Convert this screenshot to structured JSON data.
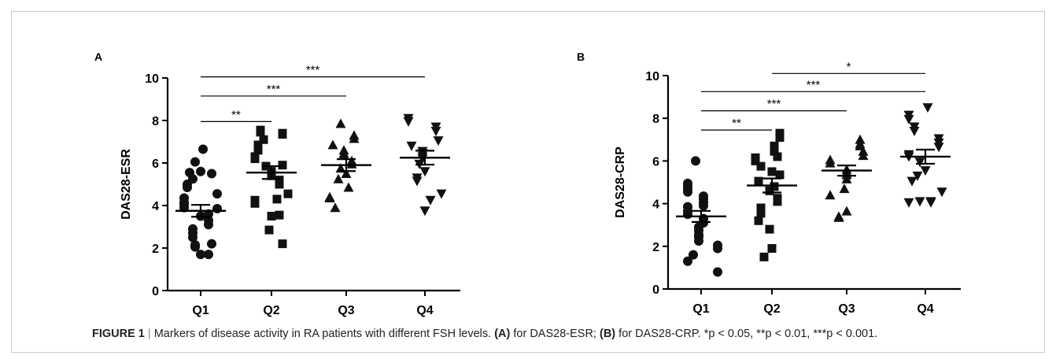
{
  "chart_data": [
    {
      "type": "scatter",
      "panel_label": "A",
      "ylabel": "DAS28-ESR",
      "categories": [
        "Q1",
        "Q2",
        "Q3",
        "Q4"
      ],
      "ylim": [
        0,
        10
      ],
      "yticks": [
        "0",
        "2",
        "4",
        "6",
        "8",
        "10"
      ],
      "grid": false,
      "series": [
        {
          "category": "Q1",
          "marker": "circle",
          "mean": 3.75,
          "sem": 0.28,
          "values": [
            6.65,
            6.05,
            5.55,
            5.5,
            5.6,
            5.25,
            5.0,
            4.85,
            4.55,
            4.35,
            4.15,
            4.05,
            3.9,
            3.85,
            3.6,
            3.5,
            3.3,
            3.1,
            2.9,
            2.7,
            2.5,
            2.2,
            2.15,
            2.05,
            1.7,
            1.7
          ]
        },
        {
          "category": "Q2",
          "marker": "square",
          "mean": 5.55,
          "sem": 0.3,
          "values": [
            7.55,
            7.45,
            7.4,
            7.35,
            7.1,
            6.85,
            6.75,
            6.6,
            6.3,
            6.2,
            5.9,
            5.85,
            5.6,
            5.4,
            5.2,
            5.0,
            4.55,
            4.3,
            4.25,
            4.1,
            3.55,
            3.5,
            2.85,
            2.2
          ]
        },
        {
          "category": "Q3",
          "marker": "triangle-up",
          "mean": 5.9,
          "sem": 0.28,
          "values": [
            7.85,
            7.3,
            7.15,
            6.85,
            6.6,
            6.45,
            6.35,
            6.1,
            5.95,
            5.75,
            5.5,
            5.25,
            4.85,
            4.4,
            4.35,
            3.9
          ]
        },
        {
          "category": "Q4",
          "marker": "triangle-down",
          "mean": 6.25,
          "sem": 0.33,
          "values": [
            8.1,
            7.95,
            7.7,
            7.5,
            7.05,
            6.8,
            6.55,
            6.45,
            6.3,
            6.2,
            5.95,
            5.6,
            5.3,
            5.15,
            4.55,
            4.25,
            3.75
          ]
        }
      ],
      "significance": [
        {
          "from": "Q1",
          "to": "Q2",
          "label": "**",
          "y": 7.95
        },
        {
          "from": "Q1",
          "to": "Q3",
          "label": "***",
          "y": 9.15
        },
        {
          "from": "Q1",
          "to": "Q4",
          "label": "***",
          "y": 10.05
        }
      ]
    },
    {
      "type": "scatter",
      "panel_label": "B",
      "ylabel": "DAS28-CRP",
      "categories": [
        "Q1",
        "Q2",
        "Q3",
        "Q4"
      ],
      "ylim": [
        0,
        10
      ],
      "yticks": [
        "0",
        "2",
        "4",
        "6",
        "8",
        "10"
      ],
      "grid": false,
      "series": [
        {
          "category": "Q1",
          "marker": "circle",
          "mean": 3.4,
          "sem": 0.26,
          "values": [
            6.0,
            4.95,
            4.85,
            4.7,
            4.55,
            4.35,
            4.2,
            4.05,
            3.9,
            3.85,
            3.65,
            3.5,
            3.3,
            3.1,
            2.9,
            2.75,
            2.55,
            2.45,
            2.25,
            2.05,
            1.9,
            1.6,
            1.3,
            0.8
          ]
        },
        {
          "category": "Q2",
          "marker": "square",
          "mean": 4.85,
          "sem": 0.33,
          "values": [
            7.3,
            7.1,
            6.7,
            6.6,
            6.45,
            6.2,
            6.15,
            6.0,
            5.75,
            5.5,
            5.35,
            5.05,
            4.8,
            4.6,
            4.25,
            4.1,
            3.8,
            3.75,
            3.55,
            3.2,
            2.8,
            1.9,
            1.5
          ]
        },
        {
          "category": "Q3",
          "marker": "triangle-up",
          "mean": 5.55,
          "sem": 0.24,
          "values": [
            7.0,
            6.8,
            6.7,
            6.45,
            6.25,
            6.05,
            5.9,
            5.6,
            5.45,
            5.35,
            5.15,
            4.7,
            4.4,
            3.65,
            3.4,
            3.35
          ]
        },
        {
          "category": "Q4",
          "marker": "triangle-down",
          "mean": 6.2,
          "sem": 0.33,
          "values": [
            8.5,
            8.15,
            7.95,
            7.6,
            7.4,
            7.05,
            6.85,
            6.65,
            6.3,
            6.2,
            5.95,
            5.55,
            5.3,
            5.05,
            4.55,
            4.1,
            4.1,
            4.05,
            4.05
          ]
        }
      ],
      "significance": [
        {
          "from": "Q1",
          "to": "Q2",
          "label": "**",
          "y": 7.45
        },
        {
          "from": "Q1",
          "to": "Q3",
          "label": "***",
          "y": 8.35
        },
        {
          "from": "Q1",
          "to": "Q4",
          "label": "***",
          "y": 9.25
        },
        {
          "from": "Q2",
          "to": "Q4",
          "label": "*",
          "y": 10.1
        }
      ]
    }
  ],
  "caption": {
    "figure_label": "FIGURE 1",
    "separator": "|",
    "text_1": "Markers of disease activity in RA patients with different FSH levels.",
    "label_a": "(A)",
    "text_2": "for DAS28-ESR;",
    "label_b": "(B)",
    "text_3": "for DAS28-CRP. *p < 0.05, **p < 0.01, ***p < 0.001."
  }
}
